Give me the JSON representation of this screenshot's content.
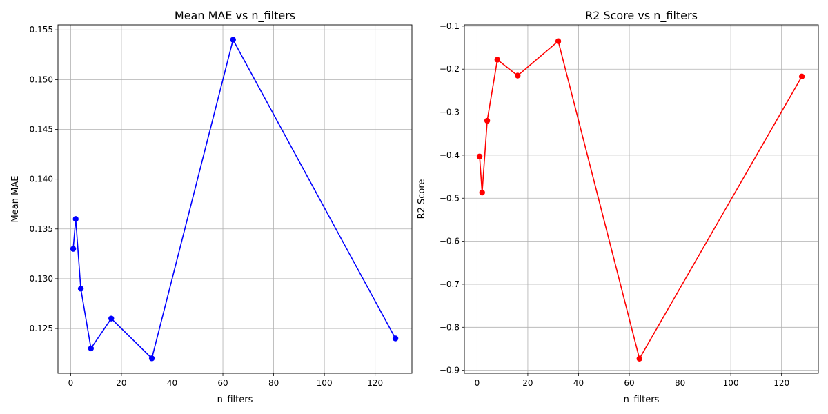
{
  "chart_data": [
    {
      "type": "line",
      "title": "Mean MAE vs n_filters",
      "xlabel": "n_filters",
      "ylabel": "Mean MAE",
      "xlim": [
        -5,
        134.5
      ],
      "ylim": [
        0.1205,
        0.1555
      ],
      "xticks": [
        0,
        20,
        40,
        60,
        80,
        100,
        120
      ],
      "yticks": [
        0.125,
        0.13,
        0.135,
        0.14,
        0.145,
        0.15,
        0.155
      ],
      "ytick_labels": [
        "0.125",
        "0.130",
        "0.135",
        "0.140",
        "0.145",
        "0.150",
        "0.155"
      ],
      "grid": true,
      "color": "#0000ff",
      "marker": "circle",
      "x": [
        1,
        2,
        4,
        8,
        16,
        32,
        64,
        128
      ],
      "y": [
        0.133,
        0.136,
        0.129,
        0.123,
        0.126,
        0.122,
        0.154,
        0.124
      ]
    },
    {
      "type": "line",
      "title": "R2 Score vs n_filters",
      "xlabel": "n_filters",
      "ylabel": "R2 Score",
      "xlim": [
        -5,
        134.5
      ],
      "ylim": [
        -0.907,
        -0.097
      ],
      "xticks": [
        0,
        20,
        40,
        60,
        80,
        100,
        120
      ],
      "yticks": [
        -0.9,
        -0.8,
        -0.7,
        -0.6,
        -0.5,
        -0.4,
        -0.3,
        -0.2,
        -0.1
      ],
      "ytick_labels": [
        "−0.9",
        "−0.8",
        "−0.7",
        "−0.6",
        "−0.5",
        "−0.4",
        "−0.3",
        "−0.2",
        "−0.1"
      ],
      "grid": true,
      "color": "#ff0000",
      "marker": "circle",
      "x": [
        1,
        2,
        4,
        8,
        16,
        32,
        64,
        128
      ],
      "y": [
        -0.403,
        -0.487,
        -0.32,
        -0.178,
        -0.215,
        -0.135,
        -0.873,
        -0.217
      ]
    }
  ]
}
